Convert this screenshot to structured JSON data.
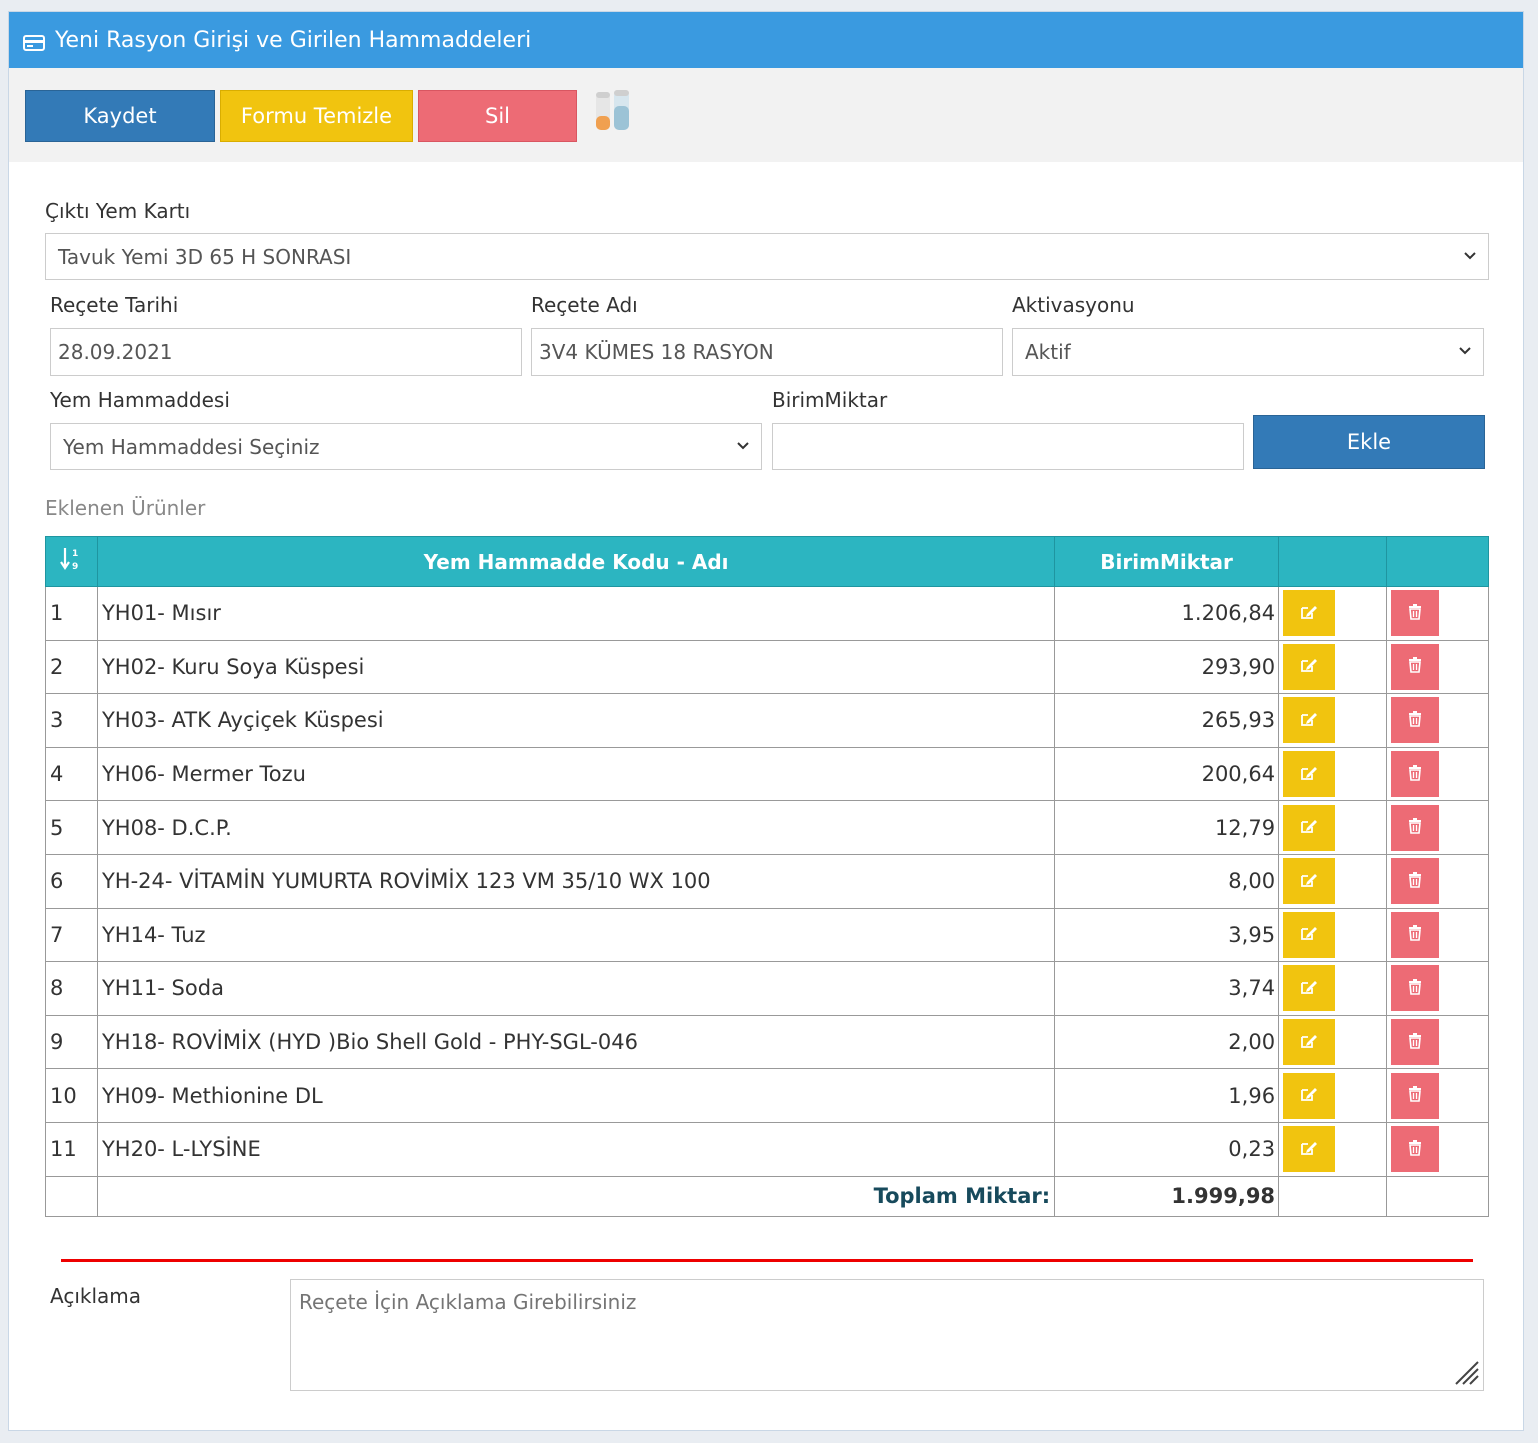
{
  "header": {
    "title": "Yeni Rasyon Girişi ve Girilen Hammaddeleri",
    "icon": "credit-card-icon"
  },
  "toolbar": {
    "save_label": "Kaydet",
    "clear_label": "Formu Temizle",
    "delete_label": "Sil"
  },
  "form": {
    "output_card_label": "Çıktı Yem Kartı",
    "output_card_value": "Tavuk Yemi 3D 65 H SONRASI",
    "date_label": "Reçete Tarihi",
    "date_value": "28.09.2021",
    "name_label": "Reçete Adı",
    "name_value": "3V4 KÜMES 18 RASYON",
    "activation_label": "Aktivasyonu",
    "activation_value": "Aktif",
    "material_label": "Yem Hammaddesi",
    "material_value": "Yem Hammaddesi Seçiniz",
    "amount_label": "BirimMiktar",
    "amount_value": "",
    "add_label": "Ekle"
  },
  "table": {
    "section_title": "Eklenen Ürünler",
    "sort_icon": "sort-numeric-icon",
    "col_name": "Yem Hammadde Kodu - Adı",
    "col_amount": "BirimMiktar",
    "rows": [
      {
        "no": "1",
        "name": "YH01- Mısır",
        "amount": "1.206,84"
      },
      {
        "no": "2",
        "name": "YH02- Kuru Soya Küspesi",
        "amount": "293,90"
      },
      {
        "no": "3",
        "name": "YH03- ATK Ayçiçek Küspesi",
        "amount": "265,93"
      },
      {
        "no": "4",
        "name": "YH06- Mermer Tozu",
        "amount": "200,64"
      },
      {
        "no": "5",
        "name": "YH08- D.C.P.",
        "amount": "12,79"
      },
      {
        "no": "6",
        "name": "YH-24- VİTAMİN YUMURTA ROVİMİX 123 VM 35/10 WX 100",
        "amount": "8,00"
      },
      {
        "no": "7",
        "name": "YH14- Tuz",
        "amount": "3,95"
      },
      {
        "no": "8",
        "name": "YH11- Soda",
        "amount": "3,74"
      },
      {
        "no": "9",
        "name": "YH18- ROVİMİX (HYD )Bio Shell Gold - PHY-SGL-046",
        "amount": "2,00"
      },
      {
        "no": "10",
        "name": "YH09- Methionine DL",
        "amount": "1,96"
      },
      {
        "no": "11",
        "name": "YH20- L-LYSİNE",
        "amount": "0,23"
      }
    ],
    "total_label": "Toplam Miktar:",
    "total_value": "1.999,98"
  },
  "description": {
    "label": "Açıklama",
    "placeholder": "Reçete İçin Açıklama Girebilirsiniz"
  },
  "colors": {
    "header": "#3a9ae0",
    "primary": "#337ab7",
    "warning": "#f1c40f",
    "danger": "#ed6b75",
    "table_header": "#2cb5c1",
    "divider": "#ee0000"
  }
}
